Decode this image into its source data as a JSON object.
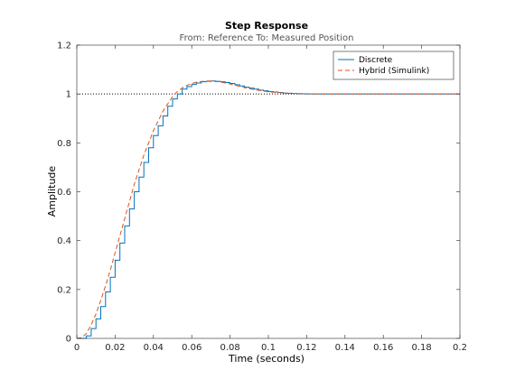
{
  "chart_data": {
    "type": "line",
    "title": "Step Response",
    "subtitle": "From: Reference  To: Measured Position",
    "xlabel": "Time (seconds)",
    "ylabel": "Amplitude",
    "xlim": [
      0,
      0.2
    ],
    "ylim": [
      0,
      1.2
    ],
    "xticks": [
      "0",
      "0.02",
      "0.04",
      "0.06",
      "0.08",
      "0.1",
      "0.12",
      "0.14",
      "0.16",
      "0.18",
      "0.2"
    ],
    "yticks": [
      "0",
      "0.2",
      "0.4",
      "0.6",
      "0.8",
      "1",
      "1.2"
    ],
    "reference_line": {
      "y": 1,
      "style": "dotted"
    },
    "legend_position": "top-right",
    "grid": false,
    "series": [
      {
        "name": "Discrete",
        "style": "stairs",
        "color": "#0072BD",
        "x": [
          0,
          0.0025,
          0.005,
          0.0075,
          0.01,
          0.0125,
          0.015,
          0.0175,
          0.02,
          0.0225,
          0.025,
          0.0275,
          0.03,
          0.0325,
          0.035,
          0.0375,
          0.04,
          0.0425,
          0.045,
          0.0475,
          0.05,
          0.0525,
          0.055,
          0.0575,
          0.06,
          0.0625,
          0.065,
          0.0675,
          0.07,
          0.0725,
          0.075,
          0.0775,
          0.08,
          0.0825,
          0.085,
          0.0875,
          0.09,
          0.0925,
          0.095,
          0.0975,
          0.1,
          0.1025,
          0.105,
          0.1075,
          0.11,
          0.1125,
          0.115,
          0.1175,
          0.12,
          0.1225,
          0.125,
          0.1275,
          0.13,
          0.1325,
          0.135
        ],
        "y": [
          0,
          0,
          0.01,
          0.04,
          0.08,
          0.13,
          0.19,
          0.25,
          0.32,
          0.39,
          0.46,
          0.53,
          0.6,
          0.66,
          0.72,
          0.78,
          0.83,
          0.87,
          0.91,
          0.95,
          0.98,
          1.0,
          1.02,
          1.03,
          1.04,
          1.045,
          1.05,
          1.052,
          1.053,
          1.052,
          1.05,
          1.047,
          1.043,
          1.038,
          1.033,
          1.028,
          1.024,
          1.02,
          1.016,
          1.013,
          1.01,
          1.008,
          1.006,
          1.004,
          1.003,
          1.002,
          1.001,
          1.0005,
          1.0,
          1.0,
          1.0,
          1.0,
          1.0,
          1.0,
          1.0
        ]
      },
      {
        "name": "Hybrid (Simulink)",
        "style": "dashed",
        "color": "#D95319",
        "x": [
          0,
          0.0025,
          0.005,
          0.0075,
          0.01,
          0.0125,
          0.015,
          0.0175,
          0.02,
          0.0225,
          0.025,
          0.0275,
          0.03,
          0.0325,
          0.035,
          0.0375,
          0.04,
          0.0425,
          0.045,
          0.0475,
          0.05,
          0.0525,
          0.055,
          0.0575,
          0.06,
          0.0625,
          0.065,
          0.0675,
          0.07,
          0.0725,
          0.075,
          0.0775,
          0.08,
          0.0825,
          0.085,
          0.0875,
          0.09,
          0.0925,
          0.095,
          0.0975,
          0.1,
          0.105,
          0.11,
          0.115,
          0.12,
          0.125,
          0.13,
          0.135,
          0.14,
          0.16,
          0.18,
          0.2
        ],
        "y": [
          0,
          0.003,
          0.02,
          0.055,
          0.1,
          0.155,
          0.215,
          0.28,
          0.35,
          0.42,
          0.49,
          0.56,
          0.63,
          0.69,
          0.75,
          0.8,
          0.85,
          0.89,
          0.93,
          0.96,
          0.99,
          1.01,
          1.025,
          1.035,
          1.043,
          1.048,
          1.051,
          1.053,
          1.053,
          1.051,
          1.049,
          1.045,
          1.041,
          1.036,
          1.031,
          1.026,
          1.022,
          1.018,
          1.015,
          1.012,
          1.009,
          1.006,
          1.003,
          1.002,
          1.001,
          1.0,
          1.0,
          1.0,
          1.0,
          1.0,
          1.0,
          1.0
        ]
      }
    ]
  }
}
